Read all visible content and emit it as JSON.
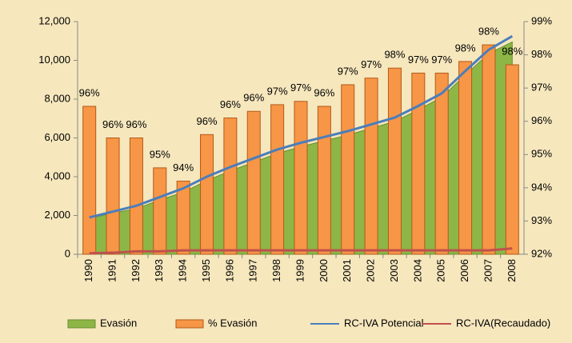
{
  "chart_data": {
    "type": "combo",
    "categories": [
      "1990",
      "1991",
      "1992",
      "1993",
      "1994",
      "1995",
      "1996",
      "1997",
      "1998",
      "1999",
      "2000",
      "2001",
      "2002",
      "2003",
      "2004",
      "2005",
      "2006",
      "2007",
      "2008"
    ],
    "series": [
      {
        "name": "Evasión",
        "type": "area",
        "color": "#8db646",
        "values": [
          1850,
          2120,
          2350,
          2800,
          3200,
          3800,
          4300,
          4750,
          5200,
          5550,
          5850,
          6150,
          6500,
          6850,
          7450,
          8100,
          9250,
          10350,
          10950
        ]
      },
      {
        "name": "% Evasión",
        "type": "bar",
        "axis": "y2",
        "color": "#f79646",
        "values": [
          96.45,
          95.5,
          95.5,
          94.6,
          94.2,
          95.6,
          96.1,
          96.3,
          96.5,
          96.6,
          96.45,
          97.1,
          97.3,
          97.6,
          97.45,
          97.45,
          97.8,
          98.3,
          97.7
        ],
        "value_labels": [
          "96%",
          "96%",
          "96%",
          "95%",
          "94%",
          "96%",
          "96%",
          "96%",
          "97%",
          "97%",
          "96%",
          "97%",
          "97%",
          "98%",
          "97%",
          "97%",
          "98%",
          "98%",
          "98%"
        ]
      },
      {
        "name": "RC-IVA Potencial",
        "type": "line",
        "color": "#4a7ebb",
        "values": [
          1900,
          2200,
          2500,
          2950,
          3400,
          4000,
          4500,
          4950,
          5400,
          5750,
          6050,
          6350,
          6700,
          7050,
          7650,
          8300,
          9450,
          10550,
          11250
        ]
      },
      {
        "name": "RC-IVA(Recaudado)",
        "type": "line",
        "color": "#c0504d",
        "values": [
          50,
          80,
          150,
          150,
          200,
          200,
          200,
          200,
          200,
          200,
          200,
          200,
          200,
          200,
          200,
          200,
          200,
          200,
          300
        ]
      }
    ],
    "ylim": [
      0,
      12000
    ],
    "yticks": [
      0,
      {
        "value": 2000,
        "label": "2,000"
      },
      {
        "value": 4000,
        "label": "4,000"
      },
      {
        "value": 6000,
        "label": "6,000"
      },
      {
        "value": 8000,
        "label": "8,000"
      },
      {
        "value": 10000,
        "label": "10,000"
      },
      {
        "value": 12000,
        "label": "12,000"
      }
    ],
    "y2lim": [
      92,
      99
    ],
    "y2ticks": [
      {
        "value": 92,
        "label": "92%"
      },
      {
        "value": 93,
        "label": "93%"
      },
      {
        "value": 94,
        "label": "94%"
      },
      {
        "value": 95,
        "label": "95%"
      },
      {
        "value": 96,
        "label": "96%"
      },
      {
        "value": 97,
        "label": "97%"
      },
      {
        "value": 98,
        "label": "98%"
      },
      {
        "value": 99,
        "label": "99%"
      }
    ],
    "legend": "bottom"
  }
}
